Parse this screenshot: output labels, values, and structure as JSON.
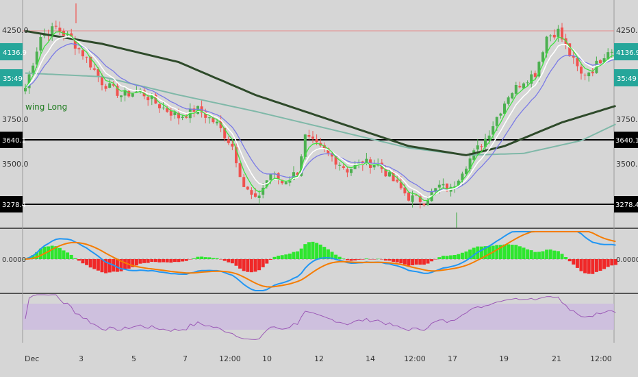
{
  "chart_data": {
    "type": "candlestick",
    "indicator_label": "wing Long",
    "x_ticks": [
      "Dec",
      "3",
      "5",
      "7",
      "12:00",
      "10",
      "12",
      "14",
      "12:00",
      "17",
      "19",
      "21",
      "12:00"
    ],
    "price_axis": {
      "ticks": [
        "4250.0",
        "3750.0",
        "3500.0"
      ],
      "ylim": [
        3150,
        4400
      ]
    },
    "price_tags": [
      {
        "value": "4136.9",
        "bg": "#26a69a",
        "line": false
      },
      {
        "value": "35:49",
        "bg": "#26a69a",
        "line": false
      },
      {
        "value": "3640.1",
        "bg": "#000000",
        "line": true
      },
      {
        "value": "3278.4",
        "bg": "#000000",
        "line": true
      }
    ],
    "macd_axis": {
      "ticks": [
        "0.0000"
      ]
    },
    "colors": {
      "background": "#d6d6d6",
      "up": "#4caf50",
      "down": "#ef5350",
      "ma_fast_green": "#3ee23e",
      "ma_white": "#ffffff",
      "ma_blue": "#7a7ae6",
      "ma_200": "#2e4a2a",
      "ma_teal": "#7fb8a8",
      "macd": "#2196f3",
      "signal": "#f57c00",
      "rsi": "#9b59b6",
      "rsi_band": "#cbb8e0",
      "resistance_line": "#e68a8a"
    },
    "price_keypoints": [
      [
        0,
        3920
      ],
      [
        4,
        4200
      ],
      [
        8,
        4250
      ],
      [
        12,
        4180
      ],
      [
        16,
        4080
      ],
      [
        20,
        3950
      ],
      [
        25,
        3880
      ],
      [
        30,
        3900
      ],
      [
        35,
        3820
      ],
      [
        40,
        3760
      ],
      [
        45,
        3800
      ],
      [
        50,
        3720
      ],
      [
        54,
        3600
      ],
      [
        57,
        3380
      ],
      [
        60,
        3300
      ],
      [
        64,
        3450
      ],
      [
        67,
        3400
      ],
      [
        71,
        3460
      ],
      [
        73,
        3650
      ],
      [
        76,
        3600
      ],
      [
        80,
        3540
      ],
      [
        84,
        3470
      ],
      [
        88,
        3510
      ],
      [
        92,
        3500
      ],
      [
        96,
        3410
      ],
      [
        100,
        3320
      ],
      [
        104,
        3300
      ],
      [
        108,
        3380
      ],
      [
        111,
        3360
      ],
      [
        114,
        3470
      ],
      [
        117,
        3560
      ],
      [
        120,
        3640
      ],
      [
        123,
        3760
      ],
      [
        126,
        3880
      ],
      [
        130,
        3960
      ],
      [
        133,
        4000
      ],
      [
        136,
        4200
      ],
      [
        139,
        4230
      ],
      [
        142,
        4100
      ],
      [
        145,
        3990
      ],
      [
        148,
        4020
      ],
      [
        152,
        4130
      ],
      [
        154,
        4120
      ]
    ],
    "ema200_keypoints": [
      [
        0,
        4230
      ],
      [
        20,
        4160
      ],
      [
        40,
        4060
      ],
      [
        60,
        3880
      ],
      [
        80,
        3740
      ],
      [
        100,
        3600
      ],
      [
        115,
        3550
      ],
      [
        125,
        3600
      ],
      [
        140,
        3730
      ],
      [
        154,
        3820
      ]
    ],
    "ma_teal_keypoints": [
      [
        0,
        4000
      ],
      [
        20,
        3980
      ],
      [
        40,
        3880
      ],
      [
        60,
        3790
      ],
      [
        80,
        3690
      ],
      [
        100,
        3590
      ],
      [
        115,
        3550
      ],
      [
        130,
        3560
      ],
      [
        145,
        3630
      ],
      [
        154,
        3720
      ]
    ]
  }
}
